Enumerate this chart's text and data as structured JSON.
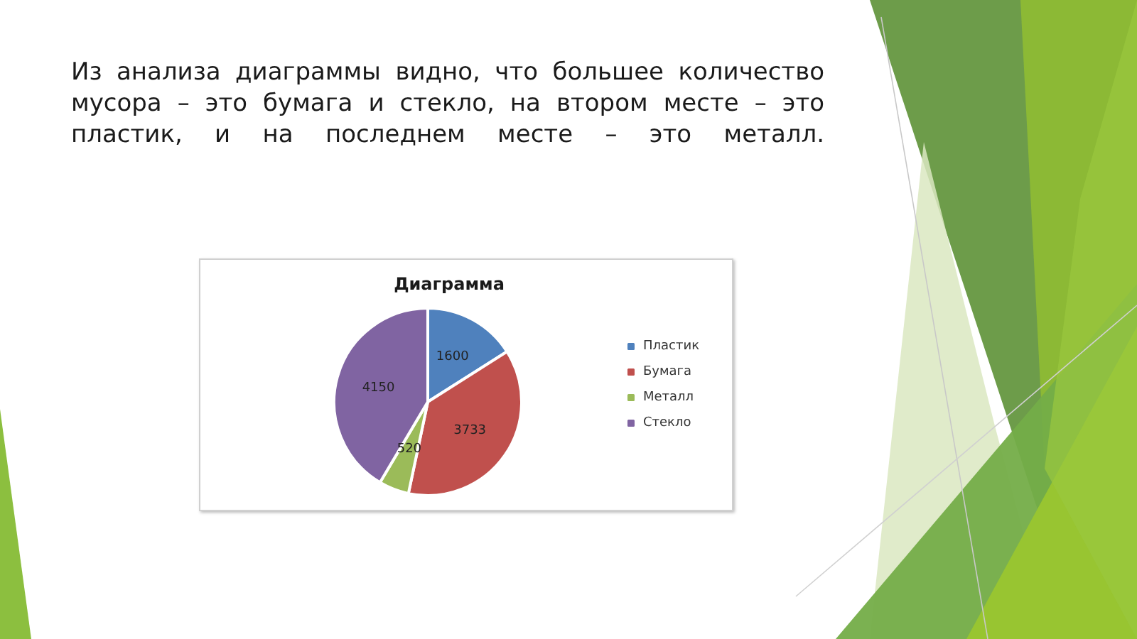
{
  "chart_data": {
    "type": "pie",
    "title": "Диаграмма",
    "annotations": [
      "Из анализа диаграммы видно, что большее количество мусора – это бумага и стекло, на втором месте – это пластик, и на последнем месте – это металл."
    ],
    "categories": [
      "Пластик",
      "Бумага",
      "Металл",
      "Стекло"
    ],
    "values": [
      1600,
      3733,
      520,
      4150
    ],
    "colors": [
      "#4f81bd",
      "#c0504d",
      "#9bbb59",
      "#8064a2"
    ],
    "data_labels": true,
    "legend": "right"
  }
}
